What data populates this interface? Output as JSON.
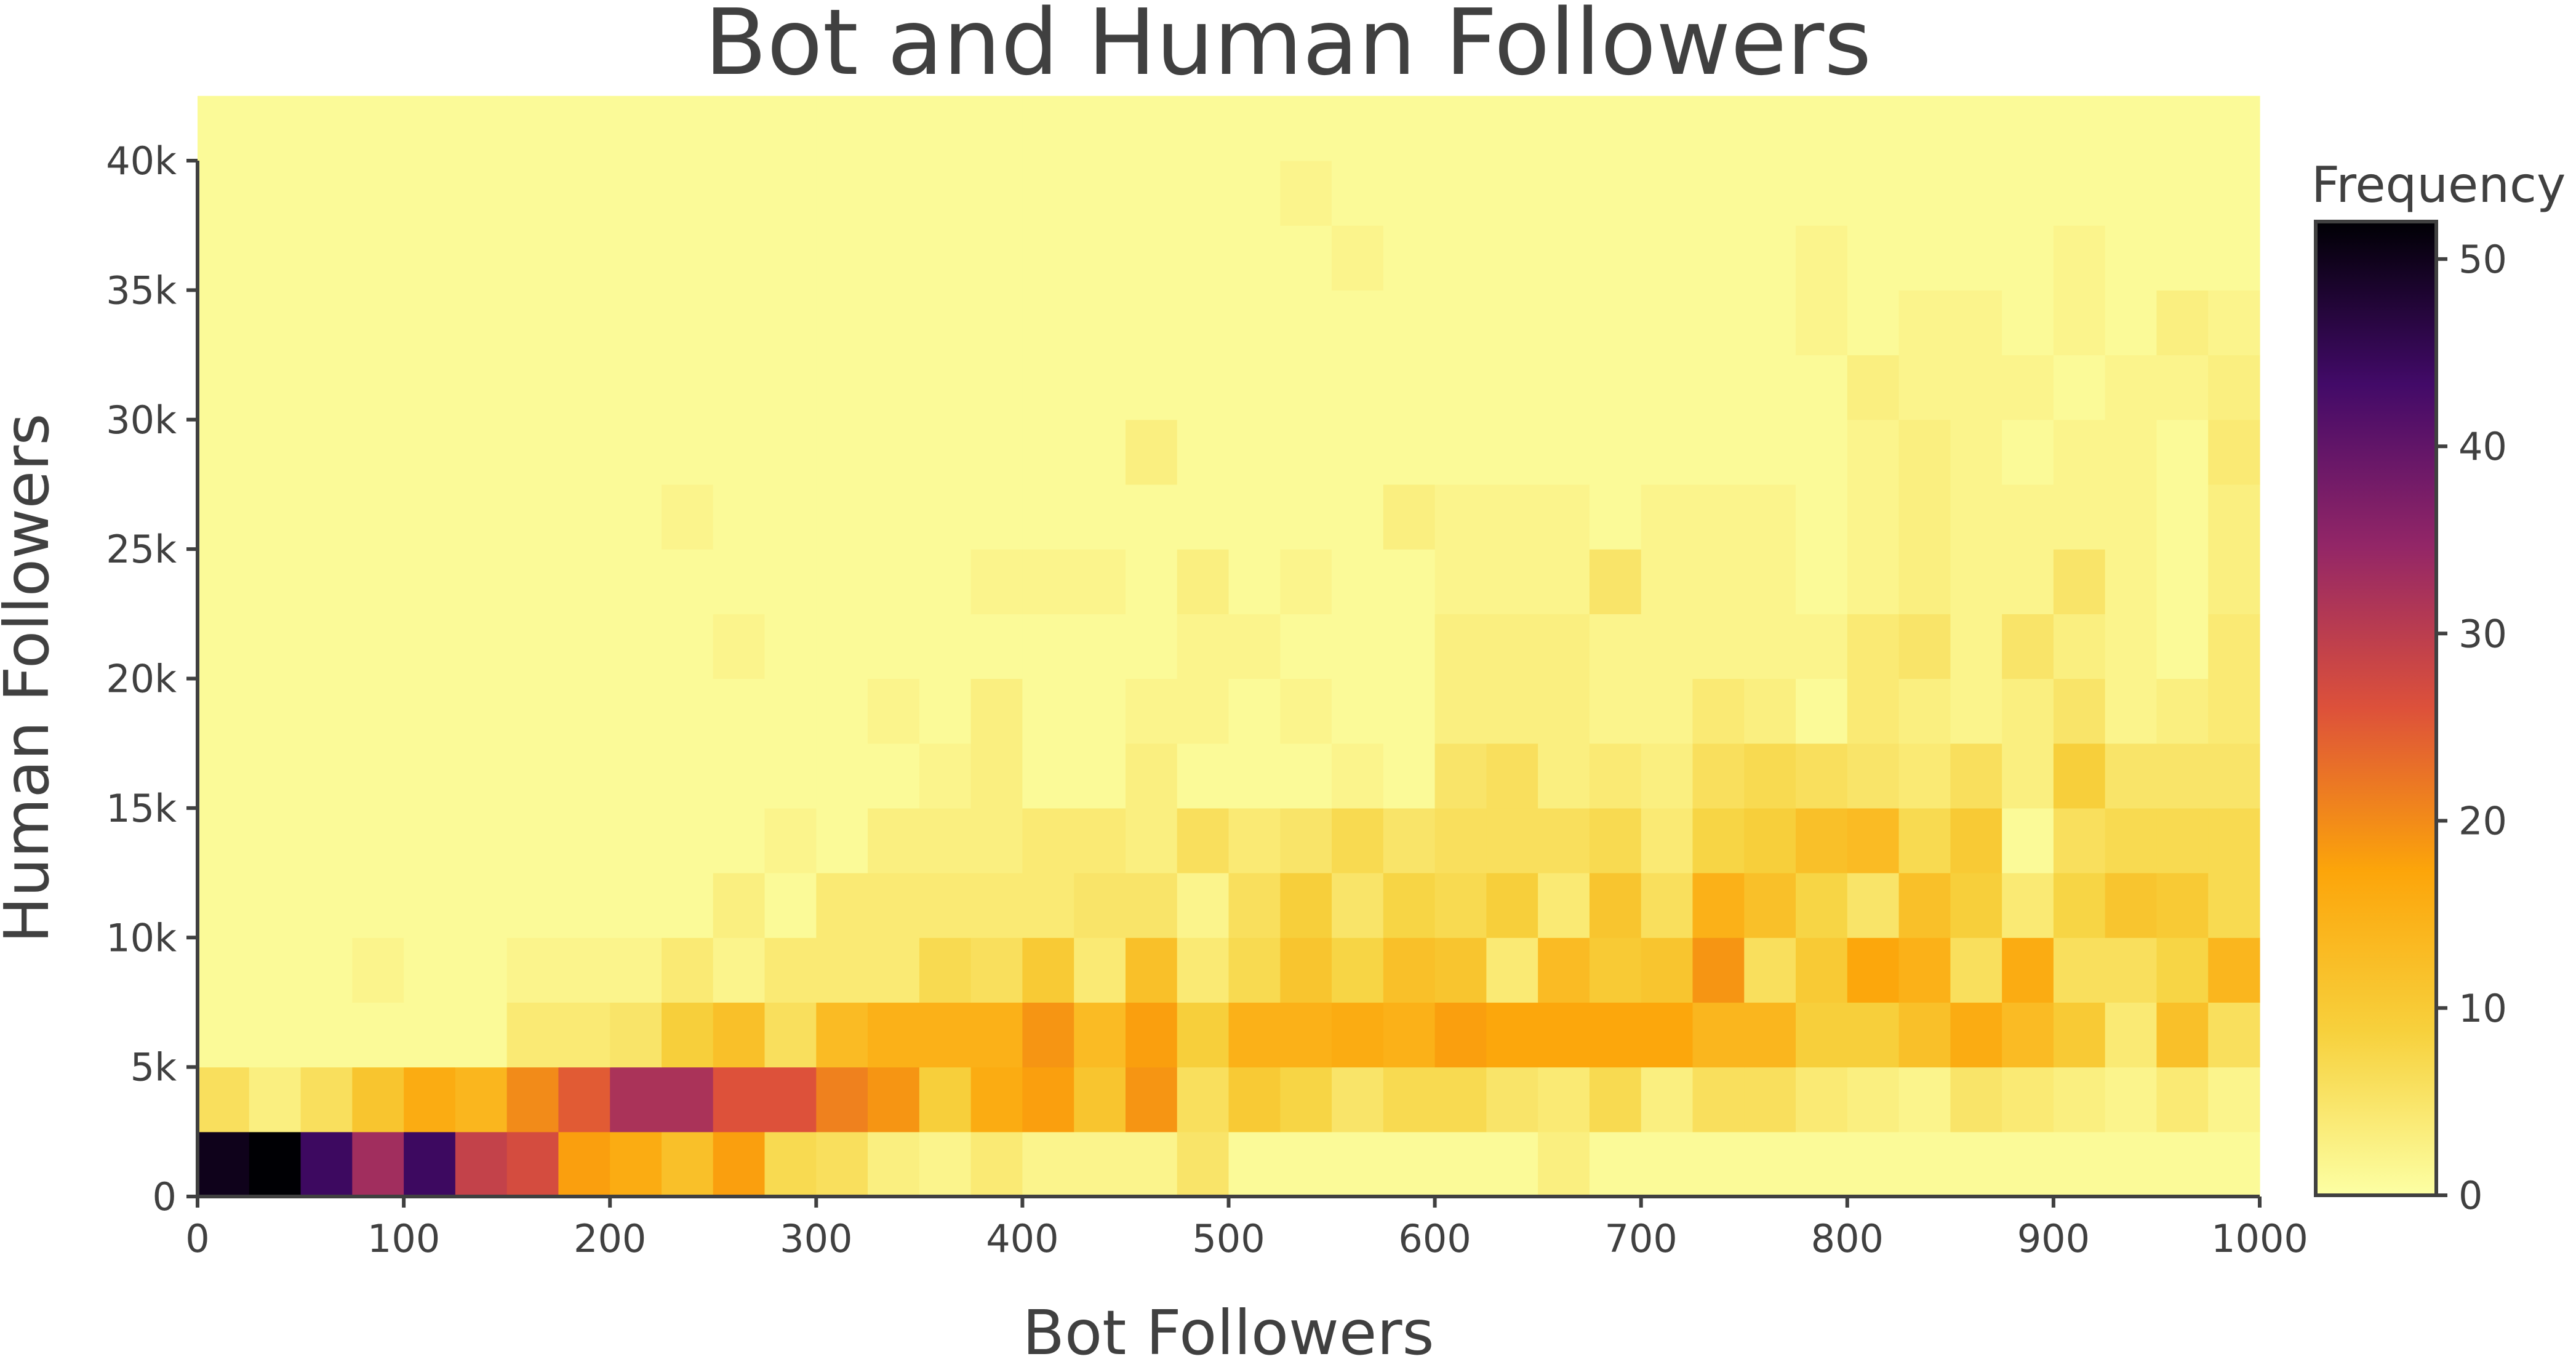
{
  "chart_data": {
    "type": "heatmap",
    "title": "Bot and Human Followers",
    "xlabel": "Bot Followers",
    "ylabel": "Human Followers",
    "xlim": [
      0,
      1000
    ],
    "ylim": [
      0,
      40000
    ],
    "x_ticks": [
      {
        "value": 0,
        "label": "0"
      },
      {
        "value": 100,
        "label": "100"
      },
      {
        "value": 200,
        "label": "200"
      },
      {
        "value": 300,
        "label": "300"
      },
      {
        "value": 400,
        "label": "400"
      },
      {
        "value": 500,
        "label": "500"
      },
      {
        "value": 600,
        "label": "600"
      },
      {
        "value": 700,
        "label": "700"
      },
      {
        "value": 800,
        "label": "800"
      },
      {
        "value": 900,
        "label": "900"
      },
      {
        "value": 1000,
        "label": "1000"
      }
    ],
    "y_ticks": [
      {
        "value": 0,
        "label": "0"
      },
      {
        "value": 5000,
        "label": "5k"
      },
      {
        "value": 10000,
        "label": "10k"
      },
      {
        "value": 15000,
        "label": "15k"
      },
      {
        "value": 20000,
        "label": "20k"
      },
      {
        "value": 25000,
        "label": "25k"
      },
      {
        "value": 30000,
        "label": "30k"
      },
      {
        "value": 35000,
        "label": "35k"
      },
      {
        "value": 40000,
        "label": "40k"
      }
    ],
    "x_bin_width": 25,
    "y_bin_width": 2500,
    "colorbar": {
      "title": "Frequency",
      "colormap": "inferno_r",
      "range": [
        0,
        52
      ],
      "ticks": [
        {
          "value": 0,
          "label": "0"
        },
        {
          "value": 10,
          "label": "10"
        },
        {
          "value": 20,
          "label": "20"
        },
        {
          "value": 30,
          "label": "30"
        },
        {
          "value": 40,
          "label": "40"
        },
        {
          "value": 50,
          "label": "50"
        }
      ],
      "stops": [
        "#fcffa4",
        "#f7d13d",
        "#fca50a",
        "#dd513a",
        "#932667",
        "#420a68",
        "#000004"
      ]
    },
    "grid": false,
    "values": [
      [
        50,
        52,
        44,
        33,
        44,
        29,
        27,
        18,
        16,
        12,
        18,
        7,
        6,
        3,
        2,
        4,
        2,
        2,
        2,
        5,
        1,
        1,
        1,
        1,
        1,
        1,
        3,
        1,
        1,
        1,
        1,
        1,
        1,
        1,
        1,
        1,
        1,
        1,
        1,
        1
      ],
      [
        6,
        3,
        6,
        11,
        16,
        14,
        20,
        25,
        32,
        32,
        26,
        26,
        21,
        19,
        9,
        16,
        18,
        11,
        19,
        6,
        10,
        8,
        5,
        7,
        7,
        5,
        4,
        7,
        3,
        6,
        6,
        4,
        3,
        2,
        5,
        4,
        3,
        2,
        4,
        2
      ],
      [
        1,
        1,
        1,
        1,
        1,
        1,
        4,
        4,
        5,
        9,
        12,
        6,
        13,
        15,
        15,
        15,
        19,
        13,
        18,
        9,
        15,
        15,
        16,
        15,
        18,
        17,
        17,
        17,
        17,
        14,
        14,
        9,
        9,
        12,
        16,
        13,
        10,
        4,
        12,
        6
      ],
      [
        1,
        1,
        1,
        2,
        1,
        1,
        2,
        2,
        2,
        4,
        2,
        4,
        4,
        4,
        7,
        6,
        10,
        4,
        12,
        4,
        7,
        11,
        8,
        12,
        11,
        4,
        13,
        10,
        11,
        19,
        6,
        10,
        17,
        15,
        6,
        16,
        6,
        6,
        8,
        14
      ],
      [
        1,
        1,
        1,
        1,
        1,
        1,
        1,
        1,
        1,
        1,
        3,
        1,
        4,
        4,
        4,
        4,
        4,
        5,
        5,
        2,
        6,
        9,
        5,
        8,
        7,
        9,
        4,
        11,
        6,
        15,
        12,
        8,
        5,
        12,
        9,
        4,
        8,
        11,
        10,
        7
      ],
      [
        1,
        1,
        1,
        1,
        1,
        1,
        1,
        1,
        1,
        1,
        1,
        2,
        1,
        3,
        3,
        3,
        4,
        4,
        3,
        6,
        4,
        5,
        7,
        5,
        6,
        6,
        6,
        7,
        4,
        8,
        9,
        12,
        13,
        7,
        10,
        1,
        6,
        7,
        7,
        7
      ],
      [
        1,
        1,
        1,
        1,
        1,
        1,
        1,
        1,
        1,
        1,
        1,
        1,
        1,
        1,
        2,
        3,
        1,
        1,
        3,
        1,
        1,
        1,
        2,
        1,
        5,
        6,
        3,
        4,
        3,
        6,
        7,
        6,
        5,
        4,
        6,
        3,
        9,
        5,
        5,
        5
      ],
      [
        1,
        1,
        1,
        1,
        1,
        1,
        1,
        1,
        1,
        1,
        1,
        1,
        1,
        2,
        1,
        3,
        1,
        1,
        2,
        2,
        1,
        2,
        1,
        1,
        3,
        3,
        3,
        2,
        2,
        4,
        3,
        1,
        4,
        3,
        2,
        3,
        5,
        2,
        3,
        4
      ],
      [
        1,
        1,
        1,
        1,
        1,
        1,
        1,
        1,
        1,
        1,
        2,
        1,
        1,
        1,
        1,
        1,
        1,
        1,
        1,
        2,
        2,
        1,
        1,
        1,
        3,
        3,
        3,
        2,
        2,
        2,
        2,
        2,
        4,
        5,
        2,
        5,
        3,
        2,
        1,
        4
      ],
      [
        1,
        1,
        1,
        1,
        1,
        1,
        1,
        1,
        1,
        1,
        1,
        1,
        1,
        1,
        1,
        2,
        2,
        2,
        1,
        3,
        1,
        2,
        1,
        1,
        2,
        2,
        2,
        5,
        2,
        2,
        2,
        1,
        2,
        3,
        2,
        2,
        5,
        2,
        1,
        3
      ],
      [
        1,
        1,
        1,
        1,
        1,
        1,
        1,
        1,
        1,
        2,
        1,
        1,
        1,
        1,
        1,
        1,
        1,
        1,
        1,
        1,
        1,
        1,
        1,
        3,
        2,
        2,
        2,
        1,
        2,
        2,
        2,
        1,
        2,
        3,
        2,
        2,
        2,
        2,
        1,
        3
      ],
      [
        1,
        1,
        1,
        1,
        1,
        1,
        1,
        1,
        1,
        1,
        1,
        1,
        1,
        1,
        1,
        1,
        1,
        1,
        3,
        1,
        1,
        1,
        1,
        1,
        1,
        1,
        1,
        1,
        1,
        1,
        1,
        1,
        2,
        3,
        2,
        1,
        2,
        2,
        1,
        4
      ],
      [
        1,
        1,
        1,
        1,
        1,
        1,
        1,
        1,
        1,
        1,
        1,
        1,
        1,
        1,
        1,
        1,
        1,
        1,
        1,
        1,
        1,
        1,
        1,
        1,
        1,
        1,
        1,
        1,
        1,
        1,
        1,
        1,
        3,
        2,
        2,
        2,
        1,
        2,
        2,
        3
      ],
      [
        1,
        1,
        1,
        1,
        1,
        1,
        1,
        1,
        1,
        1,
        1,
        1,
        1,
        1,
        1,
        1,
        1,
        1,
        1,
        1,
        1,
        1,
        1,
        1,
        1,
        1,
        1,
        1,
        1,
        1,
        1,
        2,
        1,
        2,
        2,
        1,
        2,
        1,
        3,
        2
      ],
      [
        1,
        1,
        1,
        1,
        1,
        1,
        1,
        1,
        1,
        1,
        1,
        1,
        1,
        1,
        1,
        1,
        1,
        1,
        1,
        1,
        1,
        1,
        2,
        1,
        1,
        1,
        1,
        1,
        1,
        1,
        1,
        2,
        1,
        1,
        1,
        1,
        2,
        1,
        1,
        1
      ],
      [
        1,
        1,
        1,
        1,
        1,
        1,
        1,
        1,
        1,
        1,
        1,
        1,
        1,
        1,
        1,
        1,
        1,
        1,
        1,
        1,
        1,
        2,
        1,
        1,
        1,
        1,
        1,
        1,
        1,
        1,
        1,
        1,
        1,
        1,
        1,
        1,
        1,
        1,
        1,
        1
      ],
      [
        1,
        1,
        1,
        1,
        1,
        1,
        1,
        1,
        1,
        1,
        1,
        1,
        1,
        1,
        1,
        1,
        1,
        1,
        1,
        1,
        1,
        1,
        1,
        1,
        1,
        1,
        1,
        1,
        1,
        1,
        1,
        1,
        1,
        1,
        1,
        1,
        1,
        1,
        1,
        1
      ]
    ]
  }
}
